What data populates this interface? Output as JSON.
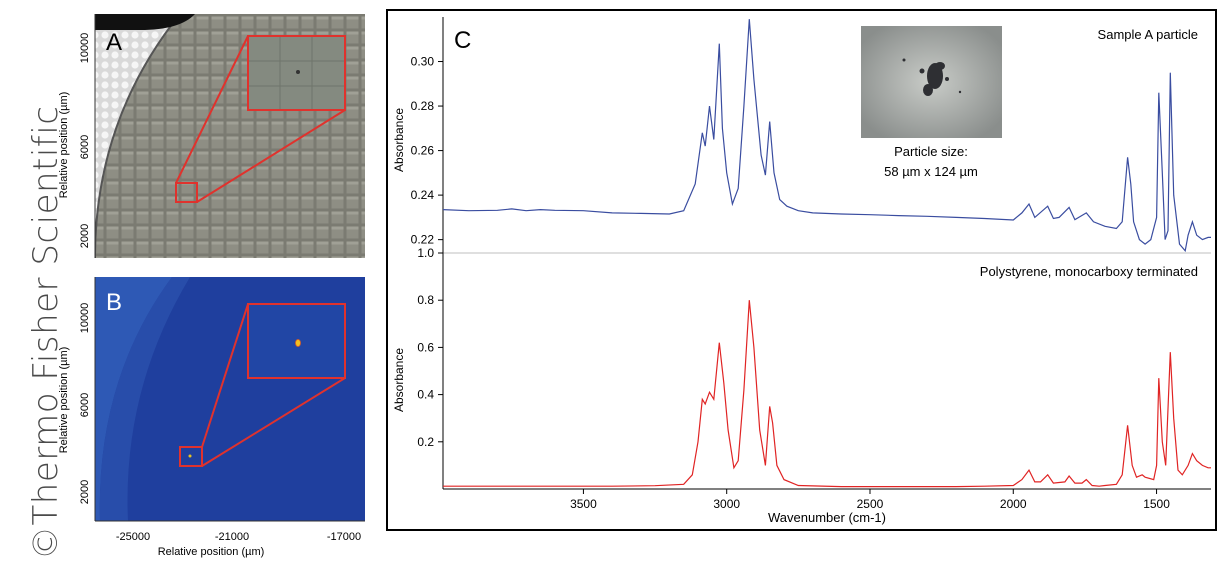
{
  "watermark": "©Thermo Fisher Scientific",
  "panel_a": {
    "label": "A",
    "ylabel": "Relative position (µm)",
    "yticks": [
      "2000",
      "6000",
      "10000"
    ]
  },
  "panel_b": {
    "label": "B",
    "ylabel": "Relative position (µm)",
    "yticks": [
      "2000",
      "6000",
      "10000"
    ],
    "xticks": [
      "-25000",
      "-21000",
      "-17000"
    ],
    "xlabel": "Relative position (µm)"
  },
  "panel_c": {
    "label": "C",
    "inset_caption_line1": "Particle size:",
    "inset_caption_line2": "58 µm x 124 µm"
  },
  "colors": {
    "sample_line": "#3a4da0",
    "reference_line": "#e02424",
    "highlight_box": "#e0322d",
    "map_background": "#1f3f9e"
  },
  "chart_data": [
    {
      "type": "line",
      "title": "Sample A particle",
      "ylabel": "Absorbance",
      "xlabel": "",
      "x_reversed": true,
      "xlim": [
        3990,
        1310
      ],
      "ylim": [
        0.214,
        0.32
      ],
      "yticks": [
        0.22,
        0.24,
        0.26,
        0.28,
        0.3
      ],
      "ytick_labels": [
        "0.22",
        "0.24",
        "0.26",
        "0.28",
        "0.30"
      ],
      "series": [
        {
          "values": [
            [
              3990,
              0.2335
            ],
            [
              3900,
              0.233
            ],
            [
              3800,
              0.2332
            ],
            [
              3750,
              0.2338
            ],
            [
              3700,
              0.233
            ],
            [
              3650,
              0.2335
            ],
            [
              3600,
              0.2332
            ],
            [
              3500,
              0.233
            ],
            [
              3400,
              0.232
            ],
            [
              3300,
              0.2318
            ],
            [
              3200,
              0.2315
            ],
            [
              3150,
              0.233
            ],
            [
              3110,
              0.245
            ],
            [
              3085,
              0.268
            ],
            [
              3075,
              0.262
            ],
            [
              3060,
              0.28
            ],
            [
              3045,
              0.265
            ],
            [
              3026,
              0.308
            ],
            [
              3015,
              0.27
            ],
            [
              3000,
              0.25
            ],
            [
              2980,
              0.236
            ],
            [
              2960,
              0.243
            ],
            [
              2940,
              0.28
            ],
            [
              2921,
              0.319
            ],
            [
              2905,
              0.292
            ],
            [
              2880,
              0.258
            ],
            [
              2865,
              0.249
            ],
            [
              2850,
              0.273
            ],
            [
              2835,
              0.25
            ],
            [
              2815,
              0.238
            ],
            [
              2790,
              0.235
            ],
            [
              2750,
              0.233
            ],
            [
              2700,
              0.232
            ],
            [
              2600,
              0.2315
            ],
            [
              2500,
              0.2312
            ],
            [
              2400,
              0.2308
            ],
            [
              2300,
              0.2305
            ],
            [
              2200,
              0.23
            ],
            [
              2100,
              0.2295
            ],
            [
              2000,
              0.2288
            ],
            [
              1970,
              0.232
            ],
            [
              1945,
              0.236
            ],
            [
              1925,
              0.23
            ],
            [
              1880,
              0.235
            ],
            [
              1860,
              0.2295
            ],
            [
              1840,
              0.23
            ],
            [
              1805,
              0.2345
            ],
            [
              1785,
              0.229
            ],
            [
              1745,
              0.232
            ],
            [
              1720,
              0.228
            ],
            [
              1680,
              0.226
            ],
            [
              1640,
              0.225
            ],
            [
              1620,
              0.228
            ],
            [
              1601,
              0.257
            ],
            [
              1590,
              0.245
            ],
            [
              1580,
              0.228
            ],
            [
              1560,
              0.22
            ],
            [
              1540,
              0.218
            ],
            [
              1520,
              0.22
            ],
            [
              1500,
              0.23
            ],
            [
              1492,
              0.286
            ],
            [
              1480,
              0.25
            ],
            [
              1470,
              0.22
            ],
            [
              1460,
              0.224
            ],
            [
              1452,
              0.295
            ],
            [
              1440,
              0.24
            ],
            [
              1420,
              0.218
            ],
            [
              1400,
              0.215
            ],
            [
              1390,
              0.222
            ],
            [
              1375,
              0.228
            ],
            [
              1360,
              0.222
            ],
            [
              1340,
              0.22
            ],
            [
              1320,
              0.221
            ],
            [
              1310,
              0.221
            ]
          ]
        }
      ]
    },
    {
      "type": "line",
      "title": "Polystyrene, monocarboxy terminated",
      "ylabel": "Absorbance",
      "xlabel": "Wavenumber (cm-1)",
      "x_reversed": true,
      "xlim": [
        3990,
        1310
      ],
      "ylim": [
        0.0,
        1.0
      ],
      "xticks": [
        3500,
        3000,
        2500,
        2000,
        1500
      ],
      "xtick_labels": [
        "3500",
        "3000",
        "2500",
        "2000",
        "1500"
      ],
      "yticks": [
        0.2,
        0.4,
        0.6,
        0.8,
        1.0
      ],
      "ytick_labels": [
        "0.2",
        "0.4",
        "0.6",
        "0.8",
        "1.0"
      ],
      "series": [
        {
          "values": [
            [
              3990,
              0.012
            ],
            [
              3700,
              0.012
            ],
            [
              3600,
              0.012
            ],
            [
              3400,
              0.012
            ],
            [
              3250,
              0.014
            ],
            [
              3150,
              0.02
            ],
            [
              3120,
              0.06
            ],
            [
              3100,
              0.2
            ],
            [
              3085,
              0.38
            ],
            [
              3075,
              0.36
            ],
            [
              3060,
              0.41
            ],
            [
              3045,
              0.38
            ],
            [
              3026,
              0.62
            ],
            [
              3010,
              0.45
            ],
            [
              2995,
              0.25
            ],
            [
              2975,
              0.09
            ],
            [
              2960,
              0.12
            ],
            [
              2940,
              0.42
            ],
            [
              2921,
              0.8
            ],
            [
              2905,
              0.6
            ],
            [
              2885,
              0.25
            ],
            [
              2865,
              0.1
            ],
            [
              2850,
              0.35
            ],
            [
              2840,
              0.28
            ],
            [
              2825,
              0.1
            ],
            [
              2800,
              0.04
            ],
            [
              2750,
              0.015
            ],
            [
              2600,
              0.01
            ],
            [
              2400,
              0.01
            ],
            [
              2200,
              0.01
            ],
            [
              2100,
              0.012
            ],
            [
              2000,
              0.015
            ],
            [
              1970,
              0.04
            ],
            [
              1945,
              0.08
            ],
            [
              1925,
              0.03
            ],
            [
              1905,
              0.03
            ],
            [
              1880,
              0.06
            ],
            [
              1860,
              0.025
            ],
            [
              1820,
              0.03
            ],
            [
              1805,
              0.055
            ],
            [
              1785,
              0.025
            ],
            [
              1760,
              0.025
            ],
            [
              1745,
              0.04
            ],
            [
              1725,
              0.015
            ],
            [
              1700,
              0.012
            ],
            [
              1680,
              0.015
            ],
            [
              1640,
              0.02
            ],
            [
              1620,
              0.06
            ],
            [
              1601,
              0.27
            ],
            [
              1585,
              0.1
            ],
            [
              1570,
              0.05
            ],
            [
              1550,
              0.06
            ],
            [
              1540,
              0.05
            ],
            [
              1510,
              0.04
            ],
            [
              1500,
              0.1
            ],
            [
              1492,
              0.47
            ],
            [
              1480,
              0.2
            ],
            [
              1468,
              0.1
            ],
            [
              1452,
              0.58
            ],
            [
              1440,
              0.3
            ],
            [
              1425,
              0.08
            ],
            [
              1410,
              0.06
            ],
            [
              1390,
              0.1
            ],
            [
              1375,
              0.15
            ],
            [
              1360,
              0.12
            ],
            [
              1340,
              0.1
            ],
            [
              1320,
              0.09
            ],
            [
              1310,
              0.09
            ]
          ]
        }
      ]
    }
  ]
}
